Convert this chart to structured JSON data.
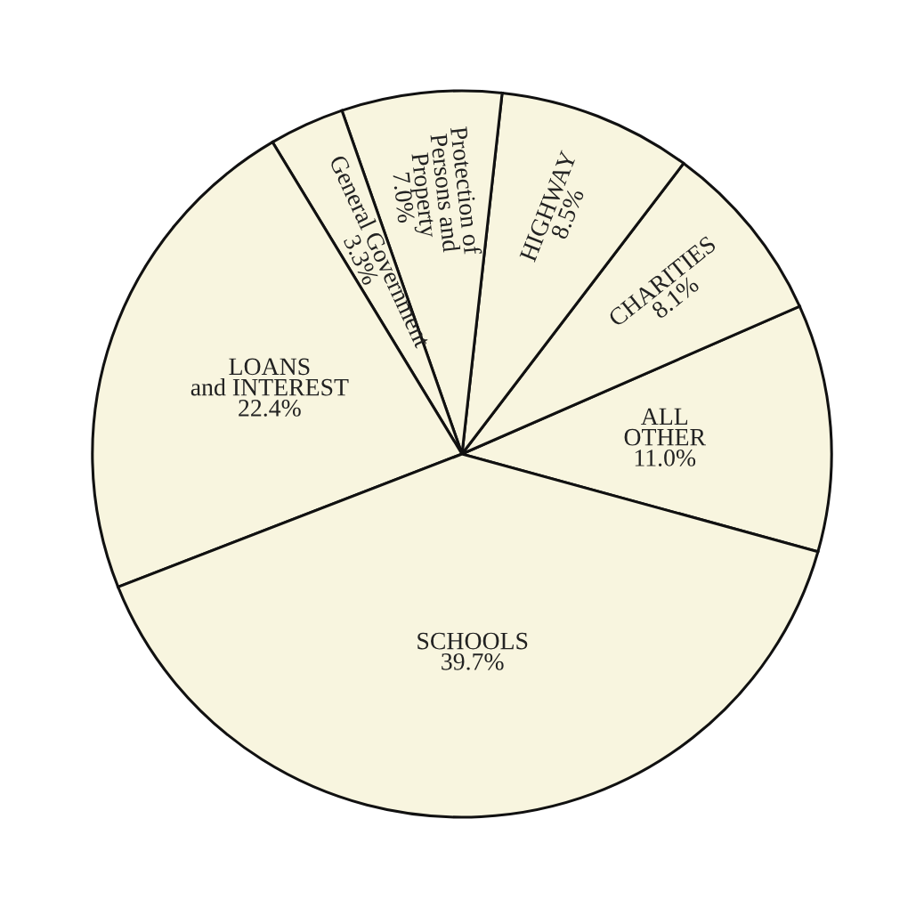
{
  "chart_data": {
    "type": "pie",
    "categories": [
      "ALL\nOTHER",
      "CHARITIES",
      "HIGHWAY",
      "Protection of\nPersons and\nProperty",
      "General Government",
      "LOANS\nand INTEREST",
      "SCHOOLS"
    ],
    "values": [
      11.0,
      8.1,
      8.5,
      7.0,
      3.3,
      22.4,
      39.7
    ],
    "value_labels": [
      "11.0%",
      "8.1%",
      "8.5%",
      "7.0%",
      "3.3%",
      "22.4%",
      "39.7%"
    ],
    "colors": [
      "#f8f5df",
      "#f8f5df",
      "#f8f5df",
      "#f8f5df",
      "#f8f5df",
      "#f8f5df",
      "#f8f5df"
    ]
  }
}
